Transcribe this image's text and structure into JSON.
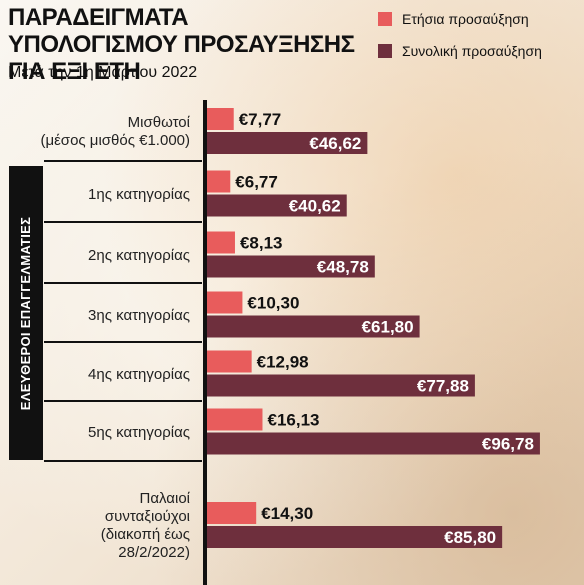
{
  "chart_data": {
    "type": "bar",
    "orientation": "horizontal",
    "title": "ΠΑΡΑΔΕΙΓΜΑΤΑ ΥΠΟΛΟΓΙΣΜΟΥ ΠΡΟΣΑΥΞΗΣΗΣ ΓΙΑ ΕΞΙ ΕΤΗ",
    "subtitle": "Μετά την 1η Μαρτίου 2022",
    "group_label": "ΕΛΕΥΘΕΡΟΙ ΕΠΑΓΓΕΛΜΑΤΙΕΣ",
    "legend_placement": "top-right",
    "grid": false,
    "categories": [
      "Μισθωτοί (μέσος μισθός €1.000)",
      "1ης κατηγορίας",
      "2ης κατηγορίας",
      "3ης κατηγορίας",
      "4ης κατηγορίας",
      "5ης κατηγορίας",
      "Παλαιοί συνταξιούχοι (διακοπή έως 28/2/2022)"
    ],
    "category_lines": [
      [
        "Μισθωτοί",
        "(μέσος μισθός €1.000)"
      ],
      [
        "1ης κατηγορίας"
      ],
      [
        "2ης κατηγορίας"
      ],
      [
        "3ης κατηγορίας"
      ],
      [
        "4ης κατηγορίας"
      ],
      [
        "5ης κατηγορίας"
      ],
      [
        "Παλαιοί",
        "συνταξιούχοι",
        "(διακοπή έως",
        "28/2/2022)"
      ]
    ],
    "series": [
      {
        "name": "Ετήσια προσαύξηση",
        "color": "#e85c5c",
        "values": [
          7.77,
          6.77,
          8.13,
          10.3,
          12.98,
          16.13,
          14.3
        ],
        "labels": [
          "€7,77",
          "€6,77",
          "€8,13",
          "€10,30",
          "€12,98",
          "€16,13",
          "€14,30"
        ]
      },
      {
        "name": "Συνολική προσαύξηση",
        "color": "#6e2f3d",
        "values": [
          46.62,
          40.62,
          48.78,
          61.8,
          77.88,
          96.78,
          85.8
        ],
        "labels": [
          "€46,62",
          "€40,62",
          "€48,78",
          "€61,80",
          "€77,88",
          "€96,78",
          "€85,80"
        ]
      }
    ],
    "xlim": [
      0,
      100
    ]
  }
}
